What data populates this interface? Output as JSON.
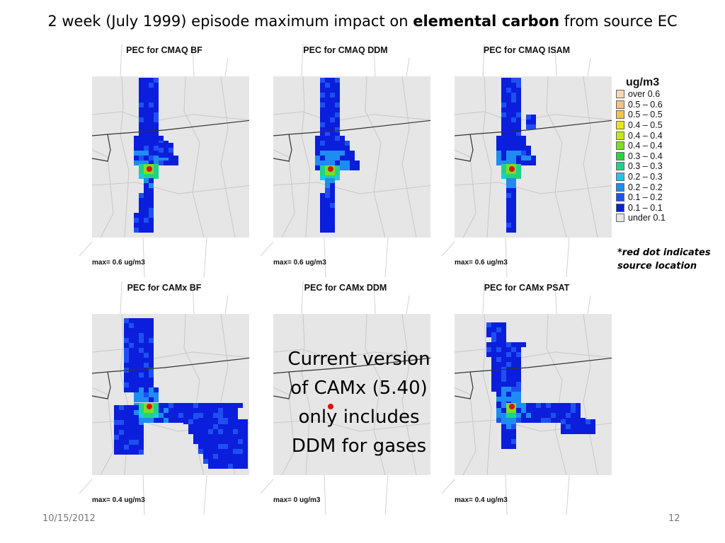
{
  "slide": {
    "title_prefix": "2 week (July 1999) episode maximum impact on ",
    "title_bold": "elemental carbon",
    "title_suffix": " from source EC",
    "date": "10/15/2012",
    "page": "12",
    "note_line1": "*red dot indicates",
    "note_line2": "source location",
    "overlay": [
      "Current version",
      "of CAMx (5.40)",
      "only includes",
      "DDM for gases"
    ]
  },
  "panels": [
    {
      "title": "PEC for CMAQ BF",
      "max_label": "max= 0.6 ug/m3",
      "shape": "cmaq_bf"
    },
    {
      "title": "PEC for CMAQ DDM",
      "max_label": "max= 0.6 ug/m3",
      "shape": "cmaq_ddm"
    },
    {
      "title": "PEC for CMAQ ISAM",
      "max_label": "max= 0.6 ug/m3",
      "shape": "cmaq_isam"
    },
    {
      "title": "PEC for CAMx BF",
      "max_label": "max= 0.4 ug/m3",
      "shape": "camx_bf"
    },
    {
      "title": "PEC for CAMx DDM",
      "max_label": "max= 0 ug/m3",
      "shape": "none"
    },
    {
      "title": "PEC for CAMx PSAT",
      "max_label": "max= 0.4 ug/m3",
      "shape": "camx_psat"
    }
  ],
  "legend": {
    "title": "ug/m3",
    "items": [
      {
        "label": "over 0.6",
        "color": "#f8d7b4"
      },
      {
        "label": "0.5 – 0.6",
        "color": "#f5c089"
      },
      {
        "label": "0.5 – 0.5",
        "color": "#f2c54a"
      },
      {
        "label": "0.4 – 0.5",
        "color": "#e6e61a"
      },
      {
        "label": "0.4 – 0.4",
        "color": "#c8e61e"
      },
      {
        "label": "0.4 – 0.4",
        "color": "#7cdc28"
      },
      {
        "label": "0.3 – 0.4",
        "color": "#2ad23c"
      },
      {
        "label": "0.3 – 0.3",
        "color": "#1ed28c"
      },
      {
        "label": "0.2 – 0.3",
        "color": "#1ec8e6"
      },
      {
        "label": "0.2 – 0.2",
        "color": "#1e8cf0"
      },
      {
        "label": "0.1 – 0.2",
        "color": "#1e50f0"
      },
      {
        "label": "0.1 – 0.1",
        "color": "#0a1edc"
      },
      {
        "label": "under 0.1",
        "color": "#e6e6e6"
      }
    ]
  }
}
